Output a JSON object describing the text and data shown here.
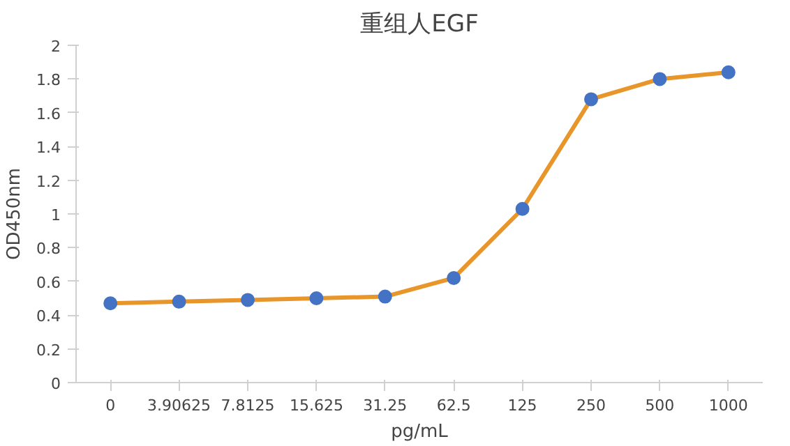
{
  "chart_data": {
    "type": "line",
    "title": "重组人EGF",
    "xlabel": "pg/mL",
    "ylabel": "OD450nm",
    "categories": [
      "0",
      "3.90625",
      "7.8125",
      "15.625",
      "31.25",
      "62.5",
      "125",
      "250",
      "500",
      "1000"
    ],
    "series": [
      {
        "color": "#e8962a",
        "marker": "none",
        "values": [
          0.47,
          0.48,
          0.49,
          0.5,
          0.51,
          0.62,
          1.03,
          1.68,
          1.8,
          1.84
        ]
      },
      {
        "type": "scatter",
        "color": "#4472c4",
        "marker": "circle",
        "values": [
          0.47,
          0.48,
          0.49,
          0.5,
          0.51,
          0.62,
          1.03,
          1.68,
          1.8,
          1.84
        ]
      }
    ],
    "ylim": [
      0,
      2
    ],
    "yticks": [
      0,
      0.2,
      0.4,
      0.6,
      0.8,
      1,
      1.2,
      1.4,
      1.6,
      1.8,
      2
    ],
    "grid": false
  }
}
